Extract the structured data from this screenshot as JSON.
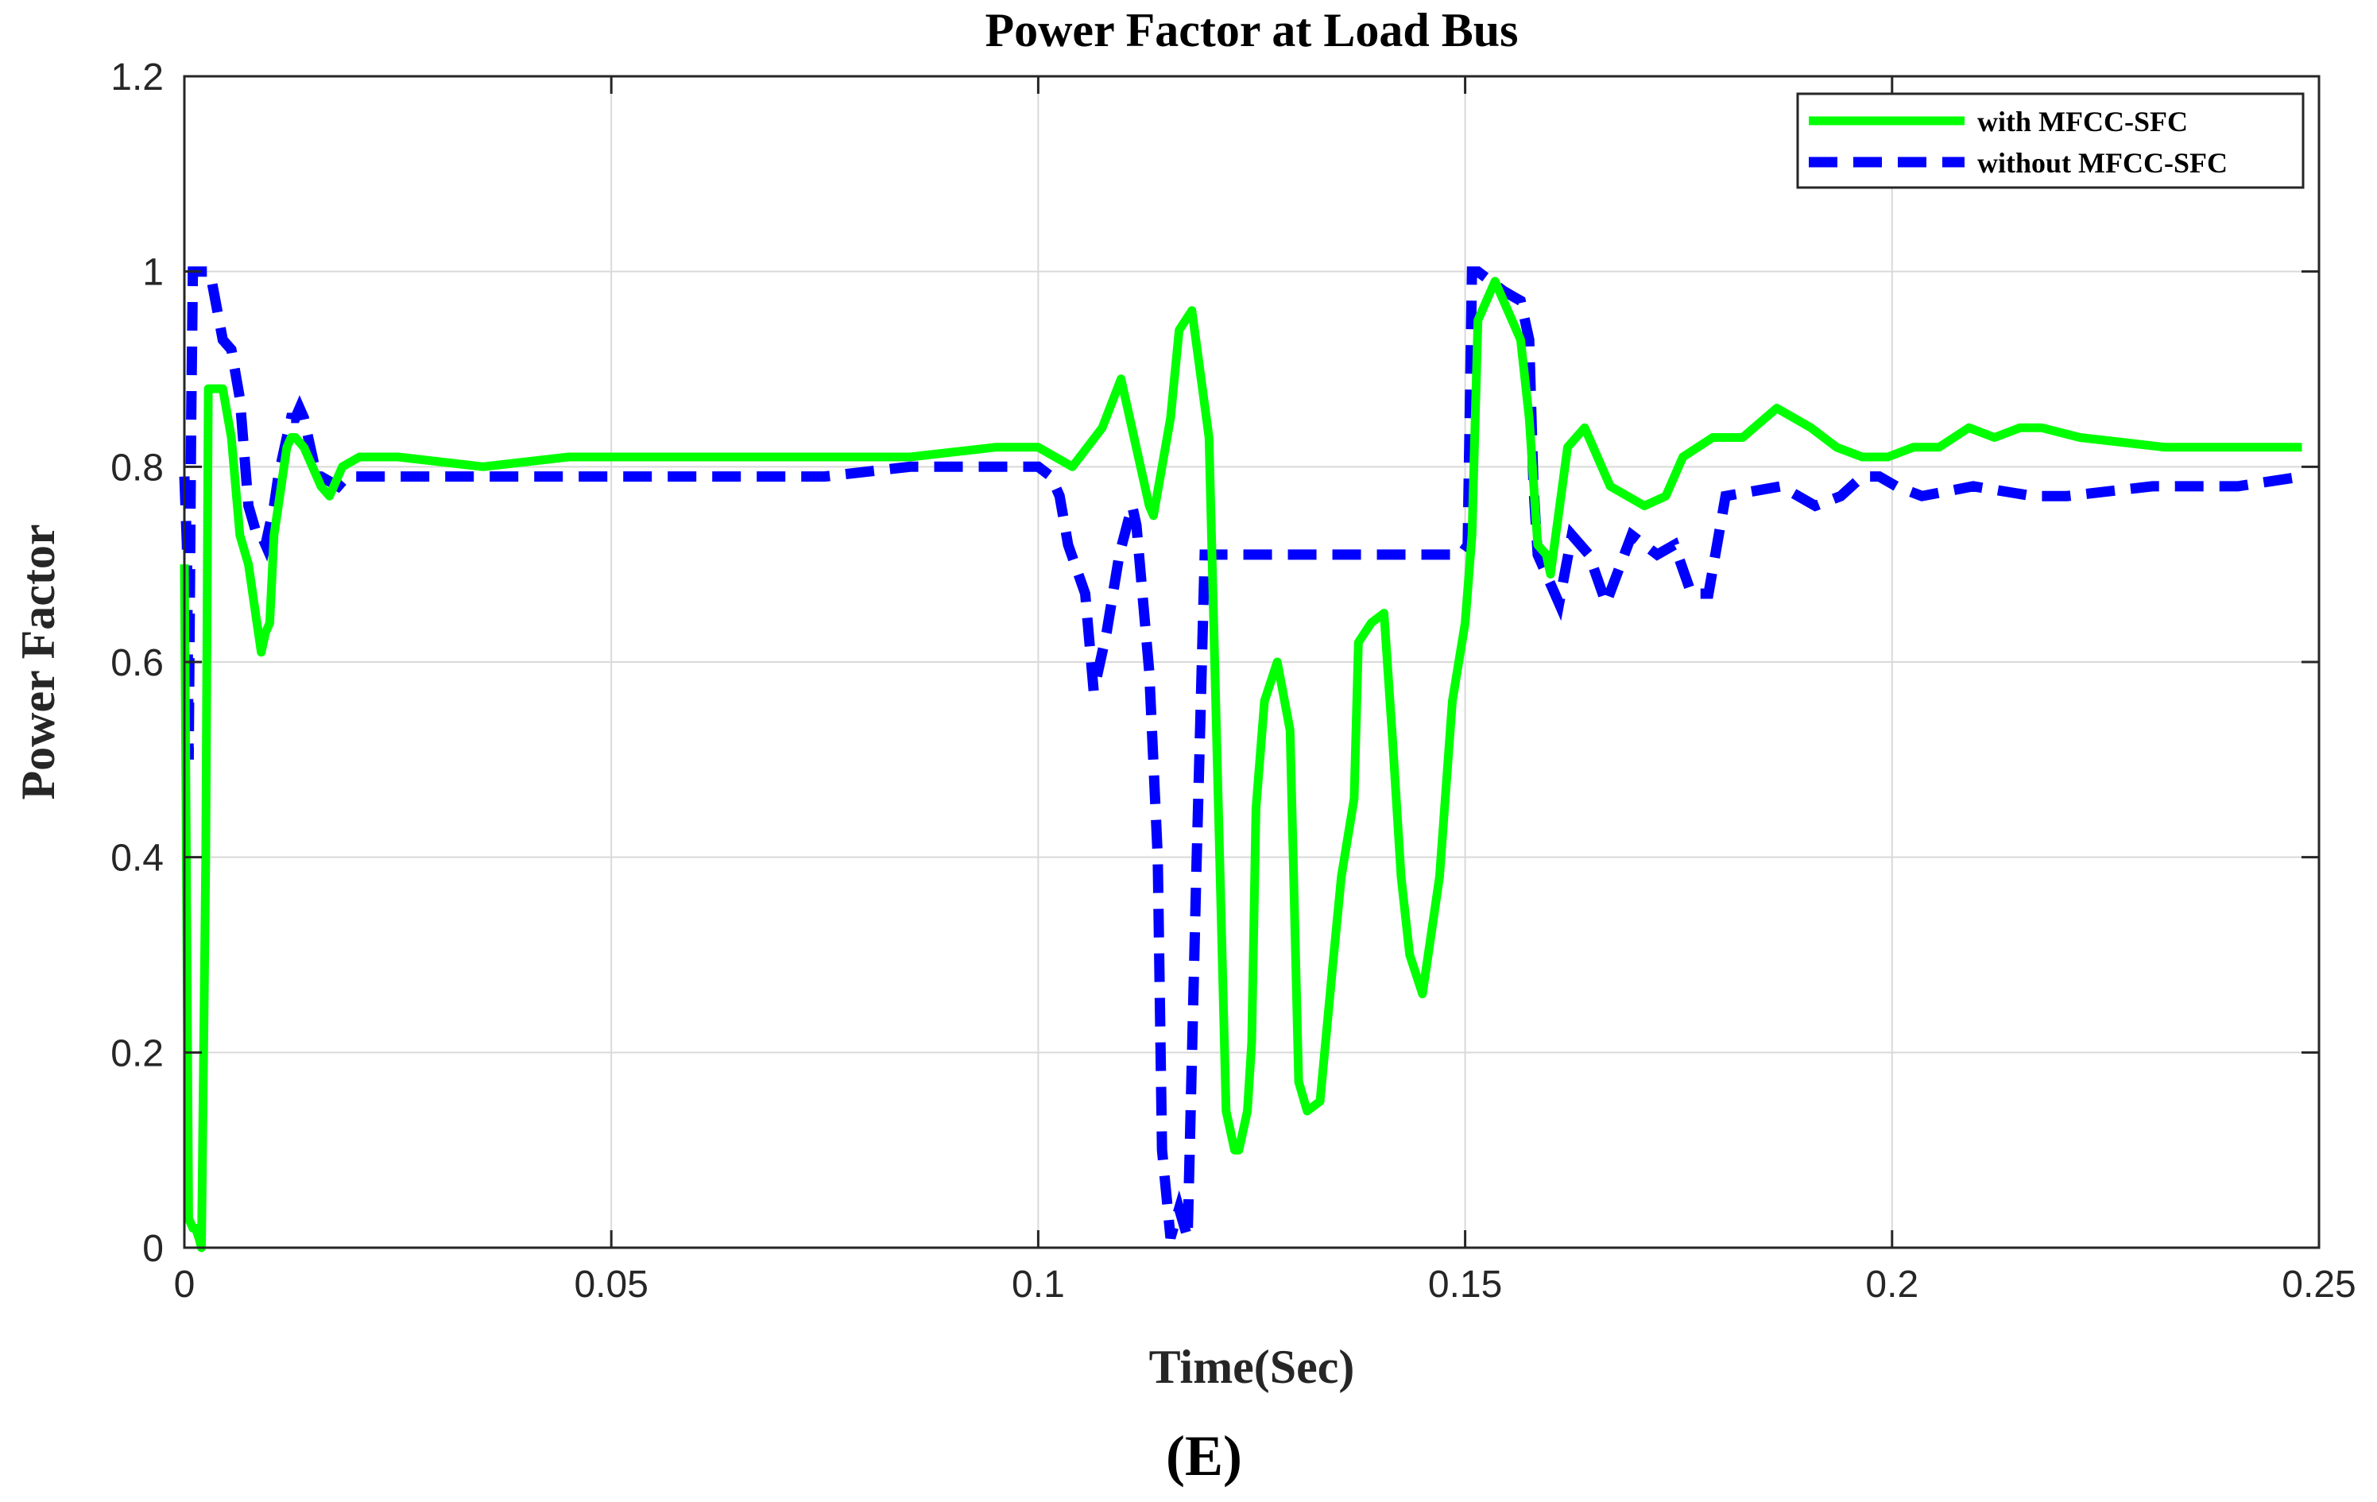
{
  "chart_data": {
    "type": "line",
    "title": "Power Factor at Load Bus",
    "xlabel": "Time(Sec)",
    "ylabel": "Power Factor",
    "panel_label": "(E)",
    "xlim": [
      0,
      0.25
    ],
    "ylim": [
      0,
      1.2
    ],
    "xticks": [
      0,
      0.05,
      0.1,
      0.15,
      0.2,
      0.25
    ],
    "xtick_labels": [
      "0",
      "0.05",
      "0.1",
      "0.15",
      "0.2",
      "0.25"
    ],
    "yticks": [
      0,
      0.2,
      0.4,
      0.6,
      0.8,
      1.0,
      1.2
    ],
    "ytick_labels": [
      "0",
      "0.2",
      "0.4",
      "0.6",
      "0.8",
      "1",
      "1.2"
    ],
    "grid": true,
    "legend_position": "top-right",
    "series": [
      {
        "name": "with MFCC-SFC",
        "color": "#00ff00",
        "style": "solid",
        "x": [
          0,
          0.0002,
          0.0005,
          0.001,
          0.0013,
          0.0017,
          0.002,
          0.0025,
          0.0028,
          0.003,
          0.0032,
          0.0035,
          0.004,
          0.0045,
          0.0055,
          0.0065,
          0.0075,
          0.0085,
          0.009,
          0.0095,
          0.01,
          0.0105,
          0.011,
          0.012,
          0.0125,
          0.013,
          0.014,
          0.015,
          0.016,
          0.017,
          0.0175,
          0.0185,
          0.0205,
          0.0225,
          0.025,
          0.035,
          0.045,
          0.07,
          0.085,
          0.095,
          0.1,
          0.104,
          0.1075,
          0.1097,
          0.113,
          0.1135,
          0.1155,
          0.1165,
          0.118,
          0.12,
          0.122,
          0.123,
          0.1235,
          0.1245,
          0.125,
          0.1255,
          0.1265,
          0.128,
          0.1295,
          0.1305,
          0.1315,
          0.133,
          0.1345,
          0.1355,
          0.137,
          0.1375,
          0.139,
          0.1405,
          0.1415,
          0.1425,
          0.1435,
          0.145,
          0.147,
          0.1485,
          0.15,
          0.1508,
          0.1515,
          0.1535,
          0.1545,
          0.1565,
          0.1575,
          0.1585,
          0.1595,
          0.16,
          0.162,
          0.164,
          0.1655,
          0.167,
          0.171,
          0.1735,
          0.1755,
          0.179,
          0.1825,
          0.1865,
          0.1905,
          0.1935,
          0.1965,
          0.1985,
          0.1995,
          0.2025,
          0.2055,
          0.209,
          0.212,
          0.215,
          0.2175,
          0.222,
          0.232,
          0.239,
          0.2435,
          0.248
        ],
        "y": [
          0.7,
          0.45,
          0.03,
          0.02,
          0.02,
          0.01,
          0.0,
          0.4,
          0.88,
          0.88,
          0.88,
          0.88,
          0.88,
          0.88,
          0.83,
          0.73,
          0.7,
          0.64,
          0.61,
          0.63,
          0.64,
          0.73,
          0.76,
          0.82,
          0.83,
          0.83,
          0.82,
          0.8,
          0.78,
          0.77,
          0.78,
          0.8,
          0.81,
          0.81,
          0.81,
          0.8,
          0.81,
          0.81,
          0.81,
          0.82,
          0.82,
          0.8,
          0.84,
          0.89,
          0.76,
          0.75,
          0.85,
          0.94,
          0.96,
          0.83,
          0.14,
          0.1,
          0.1,
          0.14,
          0.21,
          0.45,
          0.56,
          0.6,
          0.53,
          0.17,
          0.14,
          0.15,
          0.29,
          0.38,
          0.46,
          0.62,
          0.64,
          0.65,
          0.52,
          0.38,
          0.3,
          0.26,
          0.38,
          0.56,
          0.64,
          0.73,
          0.95,
          0.99,
          0.97,
          0.93,
          0.85,
          0.72,
          0.71,
          0.69,
          0.82,
          0.84,
          0.81,
          0.78,
          0.76,
          0.77,
          0.81,
          0.83,
          0.83,
          0.86,
          0.84,
          0.82,
          0.81,
          0.81,
          0.81,
          0.82,
          0.82,
          0.84,
          0.83,
          0.84,
          0.84,
          0.83,
          0.82,
          0.82,
          0.82,
          0.82
        ]
      },
      {
        "name": "without MFCC-SFC",
        "color": "#0000ff",
        "style": "dashed",
        "x": [
          0,
          0.0003,
          0.0005,
          0.0008,
          0.001,
          0.0015,
          0.002,
          0.003,
          0.0045,
          0.0055,
          0.0065,
          0.0075,
          0.0085,
          0.009,
          0.0095,
          0.01,
          0.0105,
          0.011,
          0.012,
          0.0125,
          0.013,
          0.0135,
          0.014,
          0.015,
          0.0155,
          0.016,
          0.018,
          0.019,
          0.023,
          0.03,
          0.045,
          0.052,
          0.068,
          0.075,
          0.085,
          0.095,
          0.1,
          0.1015,
          0.1025,
          0.1035,
          0.1055,
          0.1065,
          0.108,
          0.1095,
          0.111,
          0.1115,
          0.113,
          0.114,
          0.1145,
          0.1155,
          0.1165,
          0.1175,
          0.1185,
          0.1195,
          0.1215,
          0.122,
          0.13,
          0.142,
          0.1495,
          0.1503,
          0.1508,
          0.1515,
          0.153,
          0.1545,
          0.1565,
          0.1575,
          0.158,
          0.1585,
          0.16,
          0.161,
          0.1625,
          0.1645,
          0.1665,
          0.1695,
          0.1725,
          0.1745,
          0.1765,
          0.1785,
          0.1805,
          0.187,
          0.191,
          0.194,
          0.1965,
          0.1985,
          0.2005,
          0.2035,
          0.2095,
          0.2165,
          0.2205,
          0.2305,
          0.2405,
          0.248
        ],
        "y": [
          0.79,
          0.72,
          0.5,
          0.85,
          1.0,
          1.0,
          1.0,
          1.0,
          0.93,
          0.92,
          0.87,
          0.76,
          0.73,
          0.73,
          0.72,
          0.74,
          0.76,
          0.79,
          0.83,
          0.85,
          0.85,
          0.86,
          0.85,
          0.81,
          0.79,
          0.79,
          0.78,
          0.79,
          0.79,
          0.79,
          0.79,
          0.79,
          0.79,
          0.79,
          0.8,
          0.8,
          0.8,
          0.79,
          0.77,
          0.72,
          0.67,
          0.57,
          0.63,
          0.71,
          0.76,
          0.74,
          0.59,
          0.4,
          0.1,
          0.01,
          0.04,
          0.01,
          0.38,
          0.71,
          0.71,
          0.71,
          0.71,
          0.71,
          0.71,
          0.72,
          1.0,
          1.0,
          0.99,
          0.98,
          0.97,
          0.93,
          0.78,
          0.71,
          0.68,
          0.66,
          0.73,
          0.71,
          0.66,
          0.73,
          0.71,
          0.72,
          0.67,
          0.67,
          0.77,
          0.78,
          0.76,
          0.77,
          0.79,
          0.79,
          0.78,
          0.77,
          0.78,
          0.77,
          0.77,
          0.78,
          0.78,
          0.79
        ]
      }
    ]
  }
}
